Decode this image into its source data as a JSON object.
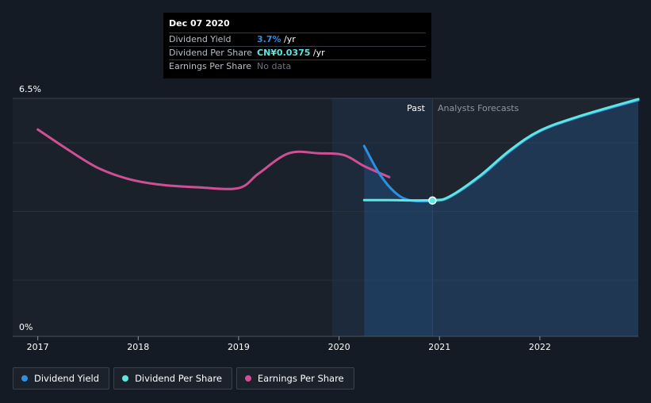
{
  "tooltip": {
    "date": "Dec 07 2020",
    "rows": [
      {
        "label": "Dividend Yield",
        "value": "3.7%",
        "unit": " /yr",
        "color": "#2f8fe0"
      },
      {
        "label": "Dividend Per Share",
        "value": "CN¥0.0375",
        "unit": " /yr",
        "color": "#5ee6e0"
      },
      {
        "label": "Earnings Per Share",
        "value": "No data",
        "unit": "",
        "color": "#6b727c"
      }
    ]
  },
  "regions": {
    "past_label": "Past",
    "forecast_label": "Analysts Forecasts"
  },
  "legend": [
    {
      "label": "Dividend Yield",
      "color": "#2e8ee0"
    },
    {
      "label": "Dividend Per Share",
      "color": "#5ee6e0"
    },
    {
      "label": "Earnings Per Share",
      "color": "#d04e94"
    }
  ],
  "chart_data": {
    "type": "line",
    "y_axis_labels": [
      "6.5%",
      "0%"
    ],
    "ylim": [
      0,
      6.5
    ],
    "xlim": [
      2016.75,
      2022.98
    ],
    "x_ticks": [
      2017,
      2018,
      2019,
      2020,
      2021,
      2022
    ],
    "x_tick_labels": [
      "2017",
      "2018",
      "2019",
      "2020",
      "2021",
      "2022"
    ],
    "divider_x": 2020.93,
    "highlight_range": [
      2019.93,
      2020.93
    ],
    "series": [
      {
        "name": "Earnings Per Share",
        "color": "#d04e94",
        "x": [
          2017.0,
          2017.3,
          2017.6,
          2017.9,
          2018.2,
          2018.6,
          2019.0,
          2019.2,
          2019.5,
          2019.8,
          2020.05,
          2020.25,
          2020.5
        ],
        "y": [
          5.65,
          5.1,
          4.6,
          4.3,
          4.15,
          4.07,
          4.05,
          4.45,
          5.0,
          5.0,
          4.95,
          4.65,
          4.35
        ]
      },
      {
        "name": "Dividend Yield",
        "color": "#2e8ee0",
        "x": [
          2020.25,
          2020.4,
          2020.55,
          2020.7,
          2020.93,
          2021.1,
          2021.4,
          2021.7,
          2022.0,
          2022.4,
          2022.98
        ],
        "y": [
          5.2,
          4.45,
          3.95,
          3.72,
          3.7,
          3.8,
          4.35,
          5.05,
          5.6,
          6.0,
          6.45
        ]
      },
      {
        "name": "Dividend Per Share",
        "color": "#5ee6e0",
        "x": [
          2020.25,
          2020.5,
          2020.93,
          2021.1,
          2021.4,
          2021.7,
          2022.0,
          2022.4,
          2022.98
        ],
        "y": [
          3.72,
          3.72,
          3.72,
          3.82,
          4.38,
          5.08,
          5.62,
          6.02,
          6.48
        ]
      }
    ],
    "highlight_point": {
      "x": 2020.93,
      "y": 3.71
    }
  }
}
